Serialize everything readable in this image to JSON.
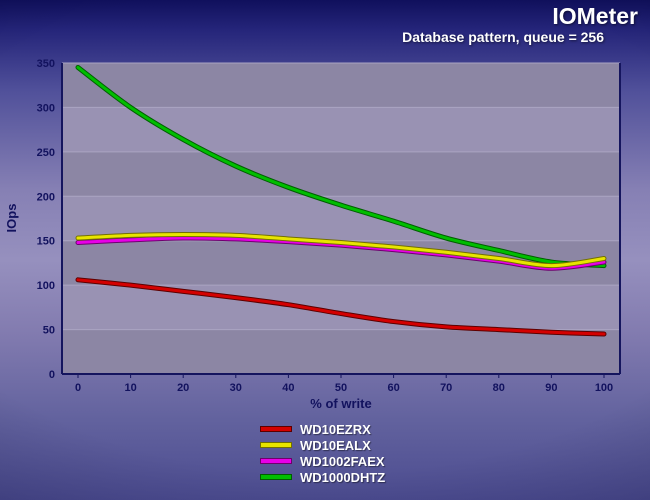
{
  "header": {
    "title": "IOMeter",
    "subtitle": "Database pattern, queue = 256"
  },
  "chart_data": {
    "type": "line",
    "title": "IOMeter",
    "subtitle": "Database pattern, queue = 256",
    "xlabel": "% of write",
    "ylabel": "IOps",
    "x": [
      0,
      10,
      20,
      30,
      40,
      50,
      60,
      70,
      80,
      90,
      100
    ],
    "ylim": [
      0,
      350
    ],
    "ytick_step": 50,
    "grid": true,
    "legend_position": "bottom",
    "plot_band_colors": [
      "#8c86a4",
      "#9992b3"
    ],
    "axis_color": "#15155e",
    "tick_label_color": "#12125e",
    "series": [
      {
        "name": "WD10EZRX",
        "color": "#d40000",
        "edge": "#5c0000",
        "values": [
          106,
          100,
          93,
          86,
          78,
          68,
          59,
          53,
          50,
          47,
          45
        ]
      },
      {
        "name": "WD10EALX",
        "color": "#e8e400",
        "edge": "#737000",
        "values": [
          153,
          156,
          157,
          156,
          152,
          148,
          143,
          137,
          130,
          122,
          130
        ]
      },
      {
        "name": "WD1002FAEX",
        "color": "#e800e8",
        "edge": "#6e006e",
        "values": [
          148,
          151,
          153,
          152,
          149,
          145,
          140,
          134,
          127,
          119,
          126
        ]
      },
      {
        "name": "WD1000DHTZ",
        "color": "#00be00",
        "edge": "#005e00",
        "values": [
          345,
          300,
          264,
          234,
          210,
          190,
          172,
          153,
          139,
          126,
          122
        ]
      }
    ]
  }
}
